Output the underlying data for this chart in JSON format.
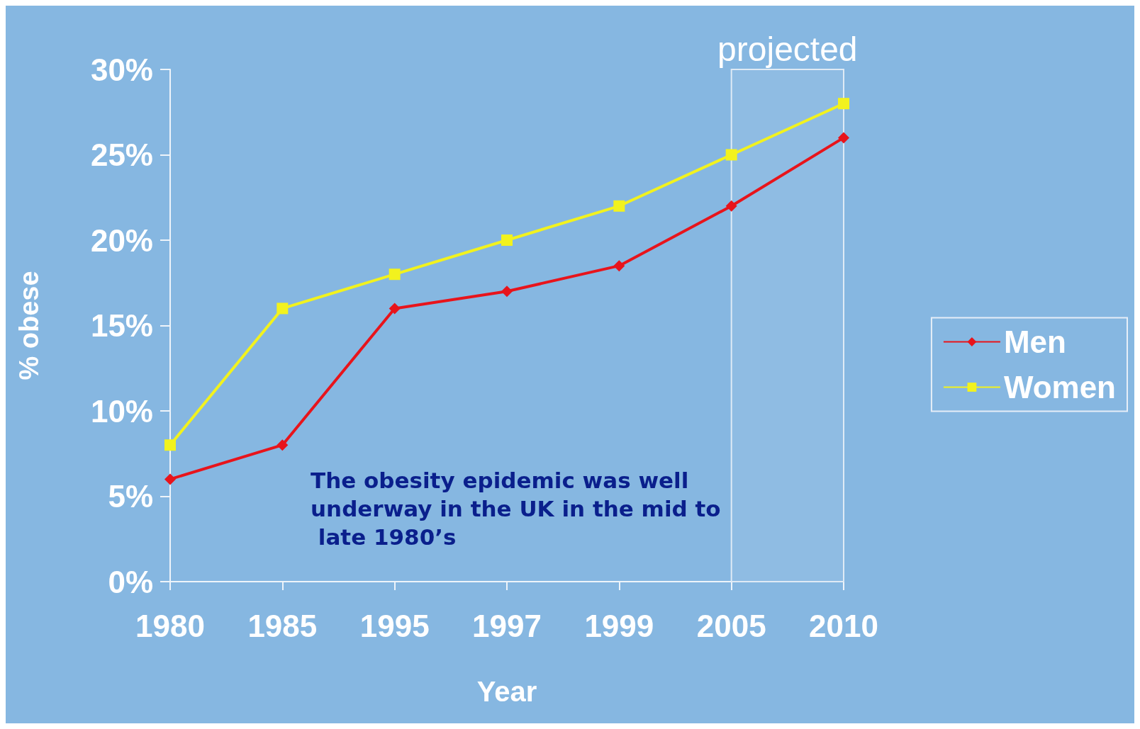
{
  "chart_data": {
    "type": "line",
    "xlabel": "Year",
    "ylabel": "% obese",
    "categories": [
      "1980",
      "1985",
      "1995",
      "1997",
      "1999",
      "2005",
      "2010"
    ],
    "series": [
      {
        "name": "Men",
        "color": "#e8141b",
        "marker": "diamond",
        "values": [
          6,
          8,
          16,
          17,
          18.5,
          22,
          26
        ]
      },
      {
        "name": "Women",
        "color": "#f2f21e",
        "marker": "square",
        "values": [
          8,
          16,
          18,
          20,
          22,
          25,
          28
        ]
      }
    ],
    "ylim": [
      0,
      30
    ],
    "yticks": [
      {
        "value": 0,
        "label": "0%"
      },
      {
        "value": 5,
        "label": "5%"
      },
      {
        "value": 10,
        "label": "10%"
      },
      {
        "value": 15,
        "label": "15%"
      },
      {
        "value": 20,
        "label": "20%"
      },
      {
        "value": 25,
        "label": "25%"
      },
      {
        "value": 30,
        "label": "30%"
      }
    ],
    "bands": [
      {
        "axis": "x",
        "from": "2005",
        "to": "2010",
        "label": "projected"
      }
    ],
    "annotations": [
      "The obesity epidemic was well underway in the UK in the mid to late 1980’s"
    ],
    "grid": false,
    "legend": "right"
  }
}
